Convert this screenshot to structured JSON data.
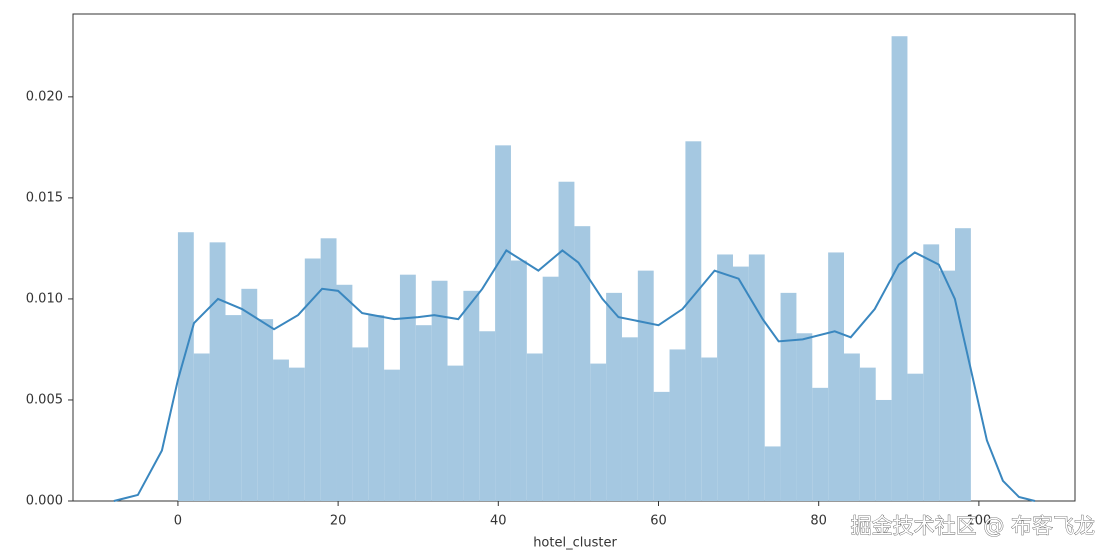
{
  "chart_data": {
    "type": "histogram",
    "xlabel": "hotel_cluster",
    "watermark": "掘金技术社区 @ 布客飞龙",
    "bins": [
      0,
      1.98,
      3.96,
      5.94,
      7.92,
      9.9,
      11.88,
      13.86,
      15.84,
      17.82,
      19.8,
      21.78,
      23.76,
      25.74,
      27.72,
      29.7,
      31.68,
      33.66,
      35.64,
      37.62,
      39.6,
      41.58,
      43.56,
      45.54,
      47.52,
      49.5,
      51.48,
      53.46,
      55.44,
      57.42,
      59.4,
      61.38,
      63.36,
      65.34,
      67.32,
      69.3,
      71.28,
      73.26,
      75.24,
      77.22,
      79.2,
      81.18,
      83.16,
      85.14,
      87.12,
      89.1,
      91.08,
      93.06,
      95.04,
      97.02,
      99
    ],
    "values": [
      0.0133,
      0.0073,
      0.0128,
      0.0092,
      0.0105,
      0.009,
      0.007,
      0.0066,
      0.012,
      0.013,
      0.0107,
      0.0076,
      0.0092,
      0.0065,
      0.0112,
      0.0087,
      0.0109,
      0.0067,
      0.0104,
      0.0084,
      0.0176,
      0.0119,
      0.0073,
      0.0111,
      0.0158,
      0.0136,
      0.0068,
      0.0103,
      0.0081,
      0.0114,
      0.0054,
      0.0075,
      0.0178,
      0.0071,
      0.0122,
      0.0116,
      0.0122,
      0.0027,
      0.0103,
      0.0083,
      0.0056,
      0.0123,
      0.0073,
      0.0066,
      0.005,
      0.023,
      0.0063,
      0.0127,
      0.0114,
      0.0135
    ],
    "color": "#a5c8e1",
    "kde": {
      "color": "#3a87bf",
      "x": [
        -8,
        -5,
        -2,
        0,
        2,
        5,
        8,
        12,
        15,
        18,
        20,
        23,
        27,
        30,
        32,
        35,
        38,
        41,
        43,
        45,
        48,
        50,
        53,
        55,
        60,
        63,
        67,
        70,
        73,
        75,
        78,
        82,
        84,
        87,
        90,
        92,
        95,
        97,
        99,
        101,
        103,
        105,
        107
      ],
      "values": [
        0,
        0.0003,
        0.0025,
        0.006,
        0.0088,
        0.01,
        0.0095,
        0.0085,
        0.0092,
        0.0105,
        0.0104,
        0.0093,
        0.009,
        0.0091,
        0.0092,
        0.009,
        0.0105,
        0.0124,
        0.0119,
        0.0114,
        0.0124,
        0.0118,
        0.01,
        0.0091,
        0.0087,
        0.0095,
        0.0114,
        0.011,
        0.009,
        0.0079,
        0.008,
        0.0084,
        0.0081,
        0.0095,
        0.0117,
        0.0123,
        0.0117,
        0.01,
        0.0065,
        0.003,
        0.001,
        0.0002,
        0
      ]
    },
    "xlim": [
      -13.1,
      112
    ],
    "ylim": [
      0,
      0.0241
    ],
    "xticks": [
      0,
      20,
      40,
      60,
      80,
      100
    ],
    "yticks": [
      {
        "value": 0,
        "label": "0.000"
      },
      {
        "value": 0.005,
        "label": "0.005"
      },
      {
        "value": 0.01,
        "label": "0.010"
      },
      {
        "value": 0.015,
        "label": "0.015"
      },
      {
        "value": 0.02,
        "label": "0.020"
      }
    ]
  }
}
